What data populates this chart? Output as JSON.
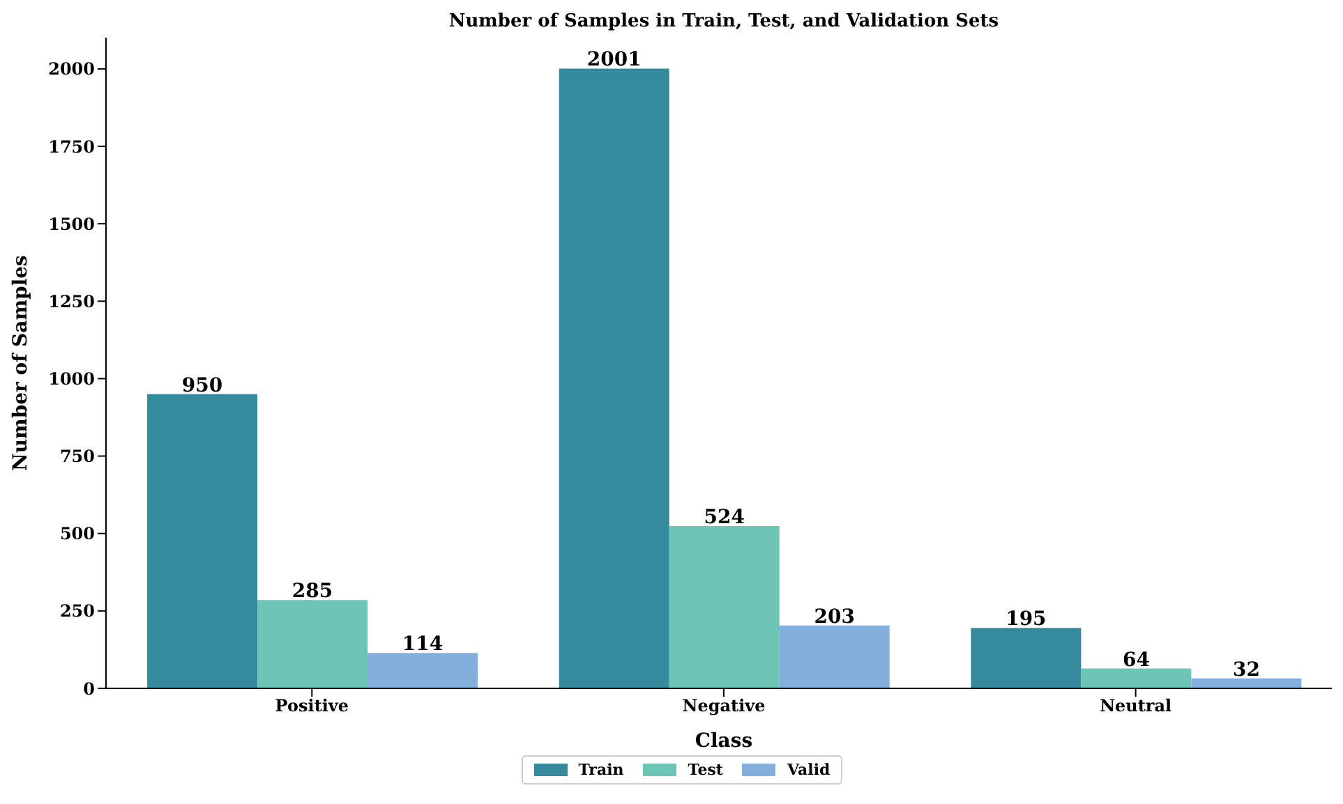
{
  "chart_data": {
    "type": "bar",
    "title": "Number of Samples in Train, Test, and Validation Sets",
    "xlabel": "Class",
    "ylabel": "Number of Samples",
    "categories": [
      "Positive",
      "Negative",
      "Neutral"
    ],
    "series": [
      {
        "name": "Train",
        "color": "#358a9e",
        "values": [
          950,
          2001,
          195
        ]
      },
      {
        "name": "Test",
        "color": "#6cc5b5",
        "values": [
          285,
          524,
          64
        ]
      },
      {
        "name": "Valid",
        "color": "#84aedc",
        "values": [
          114,
          203,
          32
        ]
      }
    ],
    "ylim": [
      0,
      2101
    ],
    "yticks": [
      0,
      250,
      500,
      750,
      1000,
      1250,
      1500,
      1750,
      2000
    ],
    "grid": false,
    "legend": "bottom",
    "data_labels": true
  }
}
